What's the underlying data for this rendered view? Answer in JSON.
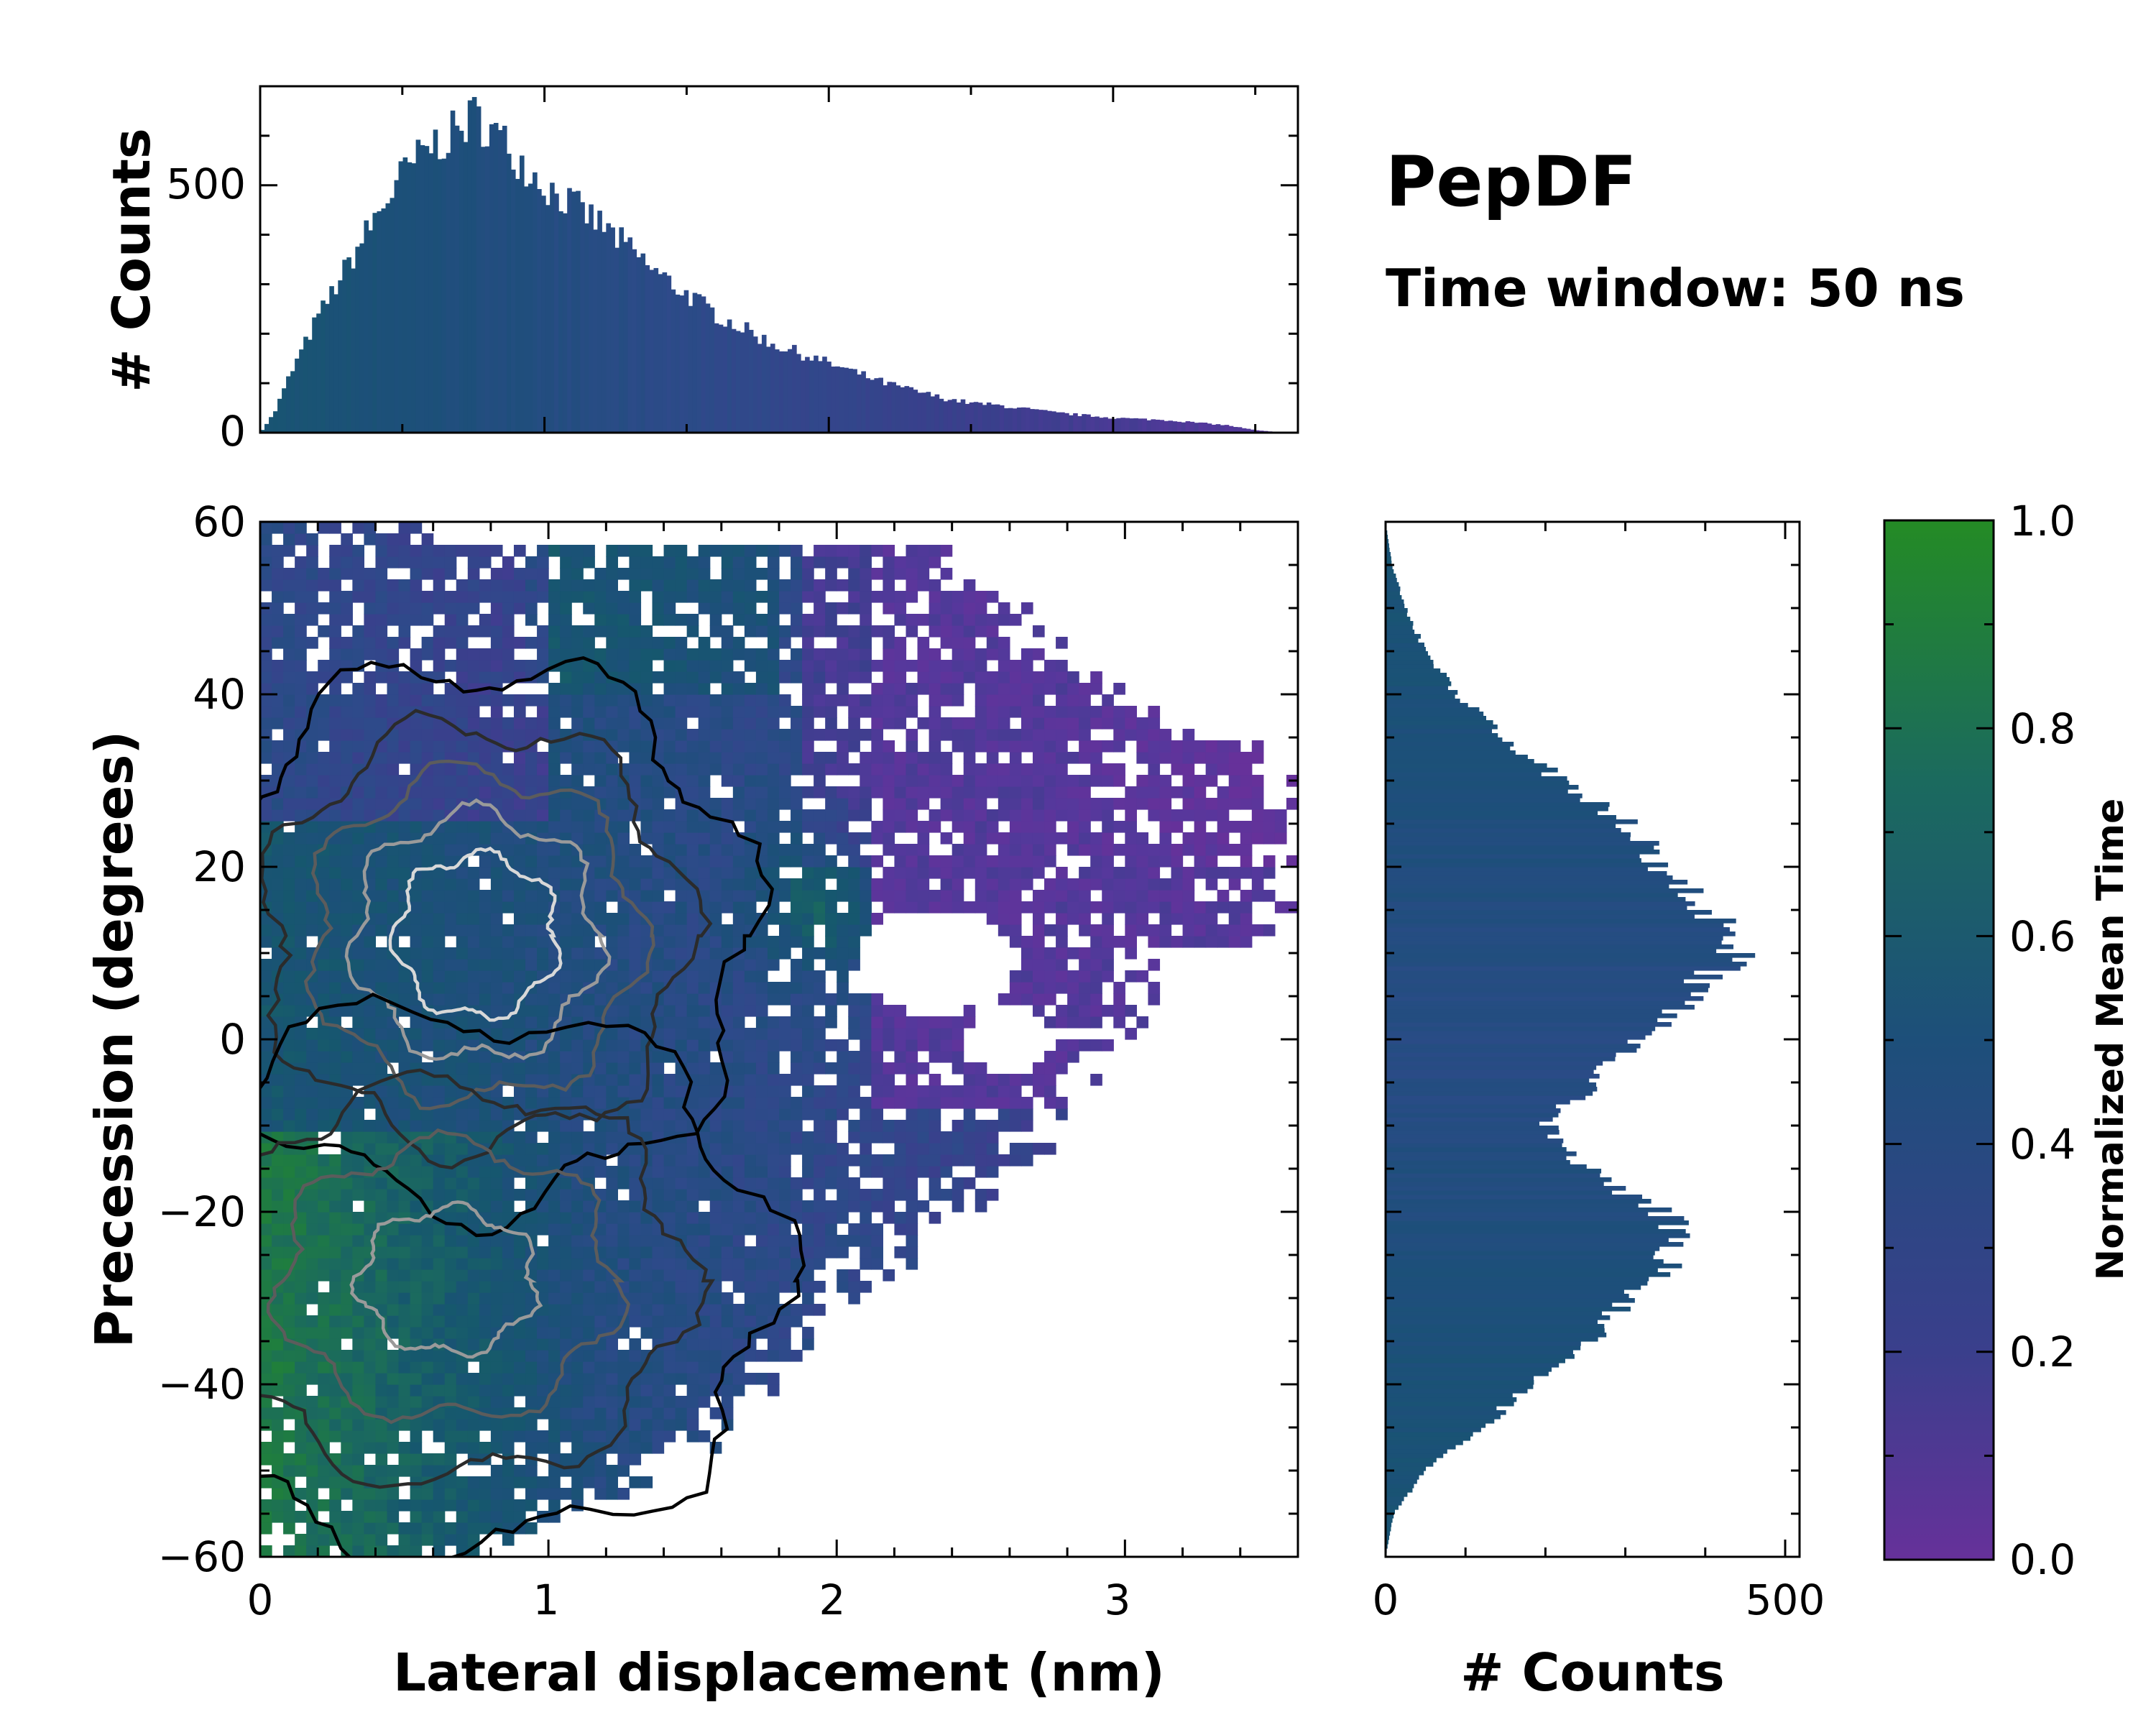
{
  "chart_data": [
    {
      "id": "top-histogram",
      "type": "bar",
      "description": "Marginal histogram of lateral displacement",
      "ylabel": "# Counts",
      "xlim": [
        0,
        3.65
      ],
      "ylim": [
        0,
        700
      ],
      "yticks": [
        0,
        500
      ],
      "ytick_labels": [
        "0",
        "500"
      ],
      "profile_x": [
        0.0,
        0.05,
        0.1,
        0.2,
        0.3,
        0.4,
        0.5,
        0.6,
        0.7,
        0.75,
        0.8,
        0.9,
        1.0,
        1.1,
        1.2,
        1.3,
        1.4,
        1.5,
        1.6,
        1.7,
        1.8,
        1.9,
        2.0,
        2.2,
        2.4,
        2.5,
        2.6,
        2.8,
        3.0,
        3.2,
        3.4,
        3.5,
        3.6
      ],
      "profile_y": [
        0,
        40,
        110,
        230,
        330,
        430,
        520,
        580,
        610,
        640,
        620,
        560,
        500,
        460,
        420,
        370,
        320,
        280,
        240,
        210,
        180,
        160,
        140,
        100,
        70,
        60,
        55,
        40,
        30,
        25,
        15,
        5,
        0
      ]
    },
    {
      "id": "right-histogram",
      "type": "bar",
      "description": "Marginal histogram of precession",
      "xlabel": "# Counts",
      "xlim": [
        0,
        500
      ],
      "ylim": [
        -60,
        60
      ],
      "xticks": [
        0,
        500
      ],
      "xtick_labels": [
        "0",
        "500"
      ],
      "profile_y": [
        -60,
        -55,
        -50,
        -45,
        -40,
        -35,
        -30,
        -25,
        -22,
        -20,
        -15,
        -10,
        -5,
        0,
        5,
        10,
        12,
        15,
        20,
        25,
        30,
        35,
        40,
        45,
        50,
        55,
        60
      ],
      "profile_x": [
        0,
        10,
        50,
        120,
        180,
        250,
        310,
        360,
        370,
        340,
        250,
        200,
        260,
        320,
        380,
        440,
        450,
        400,
        350,
        300,
        220,
        150,
        90,
        50,
        25,
        8,
        0
      ]
    },
    {
      "id": "main-heatmap",
      "type": "heatmap",
      "description": "2D histogram colored by normalized mean time with density contours",
      "xlabel": "Lateral displacement (nm)",
      "ylabel": "Precession (degrees)",
      "xlim": [
        0,
        3.6
      ],
      "ylim": [
        -60,
        60
      ],
      "xticks": [
        0,
        1,
        2,
        3
      ],
      "xtick_labels": [
        "0",
        "1",
        "2",
        "3"
      ],
      "yticks": [
        60,
        40,
        20,
        0,
        -20,
        -40,
        -60
      ],
      "ytick_labels": [
        "60",
        "40",
        "20",
        "0",
        "−20",
        "−40",
        "−60"
      ],
      "density_peaks": [
        {
          "x": 0.75,
          "y": 12,
          "strength": 1.0
        },
        {
          "x": 0.65,
          "y": -28,
          "strength": 0.7
        }
      ],
      "contour_levels": [
        0.08,
        0.22,
        0.4,
        0.6,
        0.8
      ],
      "contour_colors": [
        "#000000",
        "#2b2b2b",
        "#5c5c5c",
        "#9a9a9a",
        "#d8d8d8"
      ],
      "colorbar": {
        "label": "Normalized Mean Time",
        "range": [
          0.0,
          1.0
        ],
        "ticks": [
          0.0,
          0.2,
          0.4,
          0.6,
          0.8,
          1.0
        ],
        "tick_labels": [
          "0.0",
          "0.2",
          "0.4",
          "0.6",
          "0.8",
          "1.0"
        ]
      }
    }
  ],
  "colormap": [
    "#66319a",
    "#55389c",
    "#3a3f8c",
    "#2e4a8a",
    "#1d4f7a",
    "#16576e",
    "#1b6a5e",
    "#1e7a44",
    "#248b25"
  ],
  "title": "PepDF",
  "subtitle": "Time window: 50 ns"
}
